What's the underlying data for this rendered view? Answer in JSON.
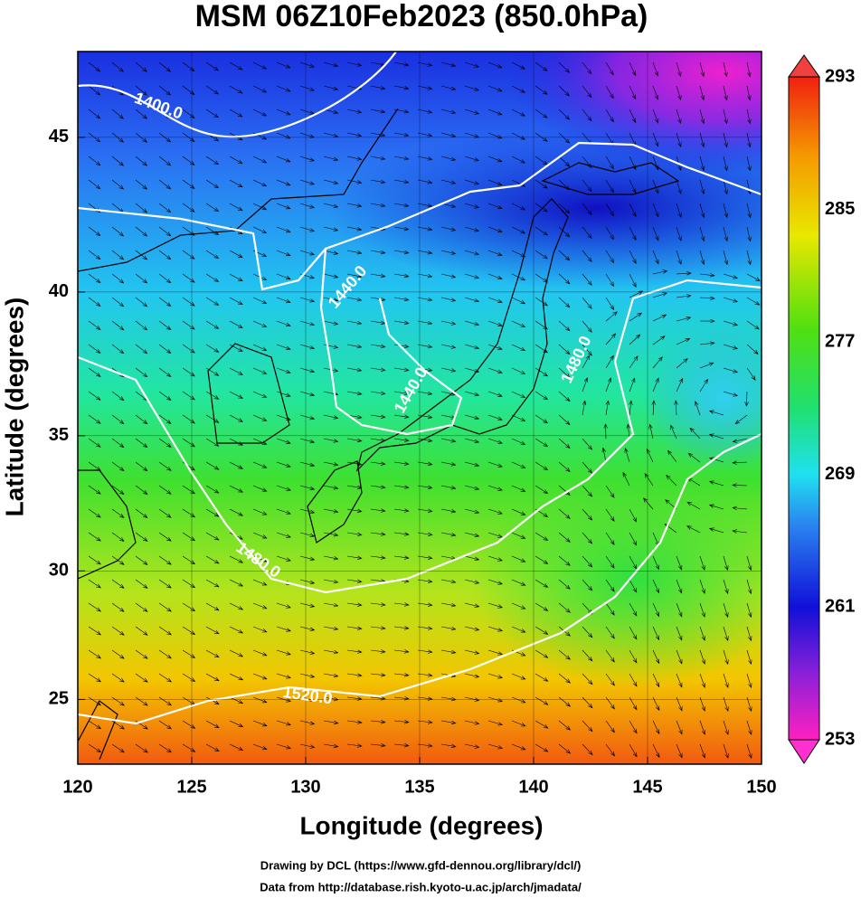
{
  "title": "MSM 06Z10Feb2023 (850.0hPa)",
  "map": {
    "projection": "mercator",
    "xlabel": "Longitude (degrees)",
    "ylabel": "Latitude  (degrees)",
    "xlim": [
      120,
      150
    ],
    "ylim": [
      22.4,
      47.6
    ],
    "xticks": [
      120,
      125,
      130,
      135,
      140,
      145,
      150
    ],
    "yticks": [
      25,
      30,
      35,
      40,
      45
    ],
    "grid": true
  },
  "colorbar": {
    "lim": [
      253,
      293
    ],
    "ticks": [
      253,
      261,
      269,
      277,
      285,
      293
    ]
  },
  "contour_labels": [
    "1400.0",
    "1440.0",
    "1440.0",
    "1480.0",
    "1480.0",
    "1520.0"
  ],
  "credits": [
    "Drawing by DCL (https://www.gfd-dennou.org/library/dcl/)",
    "Data from http://database.rish.kyoto-u.ac.jp/arch/jmadata/"
  ]
}
